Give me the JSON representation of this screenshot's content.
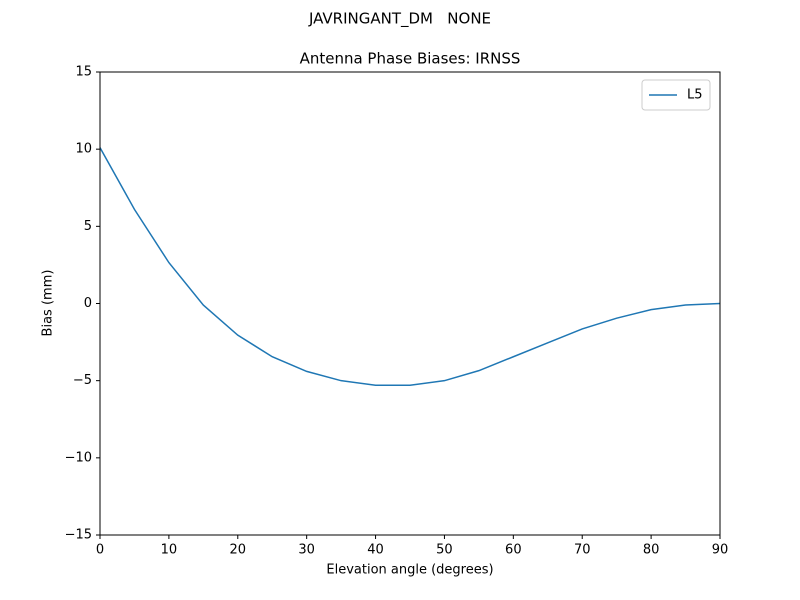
{
  "chart_data": {
    "type": "line",
    "suptitle": "JAVRINGANT_DM   NONE",
    "title": "Antenna Phase Biases: IRNSS",
    "xlabel": "Elevation angle (degrees)",
    "ylabel": "Bias (mm)",
    "x": [
      0,
      5,
      10,
      15,
      20,
      25,
      30,
      35,
      40,
      45,
      50,
      55,
      60,
      65,
      70,
      75,
      80,
      85,
      90
    ],
    "series": [
      {
        "name": "L5",
        "color": "#1f77b4",
        "values": [
          10.1,
          6.1,
          2.65,
          -0.1,
          -2.05,
          -3.45,
          -4.4,
          -5.0,
          -5.3,
          -5.3,
          -5.0,
          -4.35,
          -3.45,
          -2.55,
          -1.65,
          -0.95,
          -0.4,
          -0.1,
          0.0
        ]
      }
    ],
    "xlim": [
      0,
      90
    ],
    "xticks": [
      0,
      10,
      20,
      30,
      40,
      50,
      60,
      70,
      80,
      90
    ],
    "ylim": [
      -15,
      15
    ],
    "yticks": [
      {
        "value": -15,
        "label": "−15"
      },
      {
        "value": -10,
        "label": "−10"
      },
      {
        "value": -5,
        "label": "−5"
      },
      0,
      5,
      10,
      15
    ],
    "grid": false,
    "legend": "upper right"
  }
}
